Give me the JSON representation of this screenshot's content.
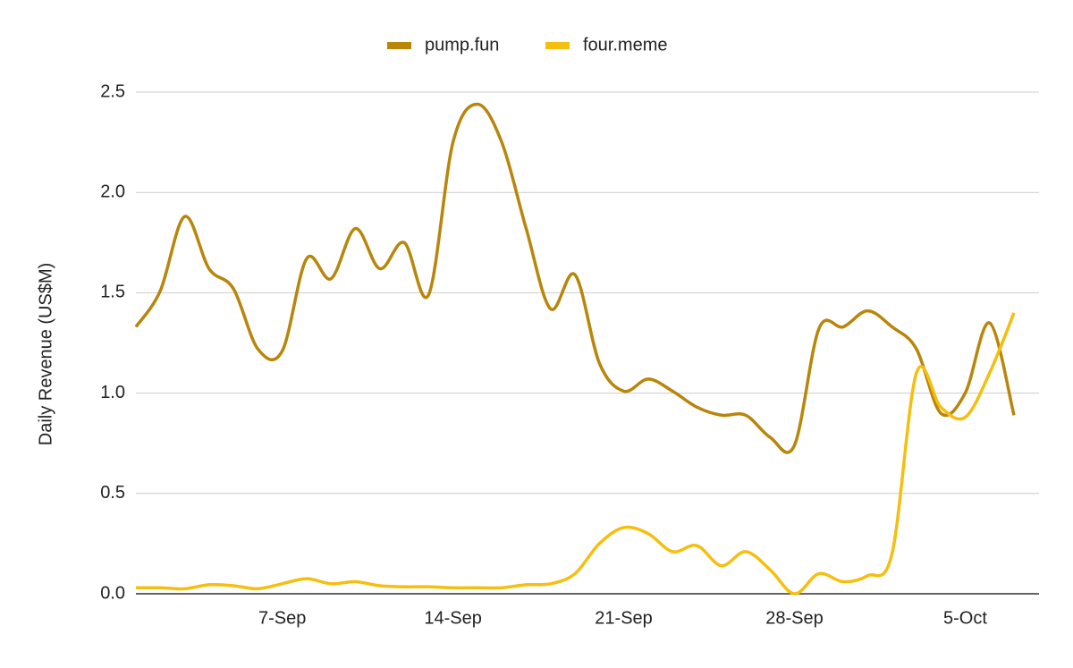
{
  "chart_data": {
    "type": "line",
    "y_label": "Daily Revenue (US$M)",
    "categories": [
      null,
      null,
      null,
      null,
      null,
      null,
      "7-Sep",
      null,
      null,
      null,
      null,
      null,
      null,
      "14-Sep",
      null,
      null,
      null,
      null,
      null,
      null,
      "21-Sep",
      null,
      null,
      null,
      null,
      null,
      null,
      "28-Sep",
      null,
      null,
      null,
      null,
      null,
      null,
      "5-Oct",
      null,
      null
    ],
    "series": [
      {
        "name": "pump.fun",
        "color": "#b8860b",
        "values": [
          1.33,
          1.51,
          1.88,
          1.62,
          1.52,
          1.22,
          1.21,
          1.67,
          1.57,
          1.82,
          1.62,
          1.75,
          1.49,
          2.25,
          2.44,
          2.25,
          1.82,
          1.42,
          1.59,
          1.15,
          1.01,
          1.07,
          1.01,
          0.93,
          0.89,
          0.89,
          0.78,
          0.74,
          1.32,
          1.33,
          1.41,
          1.33,
          1.22,
          0.9,
          1.0,
          1.35,
          0.89
        ]
      },
      {
        "name": "four.meme",
        "color": "#f5bf0f",
        "values": [
          0.03,
          0.03,
          0.025,
          0.045,
          0.04,
          0.025,
          0.05,
          0.075,
          0.05,
          0.06,
          0.04,
          0.035,
          0.035,
          0.03,
          0.03,
          0.03,
          0.045,
          0.05,
          0.1,
          0.25,
          0.33,
          0.3,
          0.21,
          0.24,
          0.14,
          0.21,
          0.12,
          0.0,
          0.1,
          0.06,
          0.09,
          0.2,
          1.1,
          0.93,
          0.88,
          1.1,
          1.4
        ]
      }
    ],
    "ylim": [
      0,
      2.5
    ],
    "yticks": [
      {
        "value": 0,
        "label": "0.0"
      },
      0.5,
      {
        "value": 1,
        "label": "1.0"
      },
      1.5,
      {
        "value": 2,
        "label": "2.0"
      },
      2.5
    ],
    "grid": true,
    "legend": "top"
  }
}
